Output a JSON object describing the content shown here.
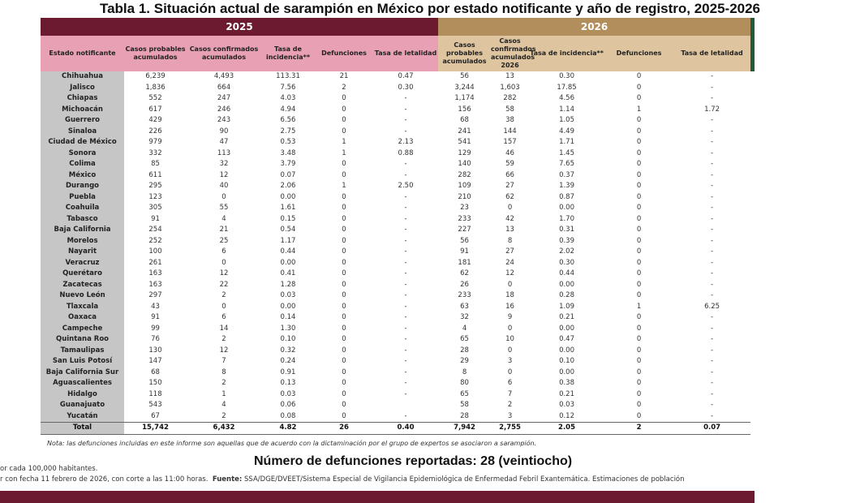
{
  "title": "Tabla 1. Situación actual de sarampión en México por estado notificante y año de registro, 2025-2026",
  "years": [
    "2025",
    "2026"
  ],
  "headers": {
    "state": "Estado notificante",
    "y2025": [
      "Casos probables acumulados",
      "Casos confirmados acumulados",
      "Tasa de incidencia**",
      "Defunciones",
      "Tasa de letalidad"
    ],
    "y2026": [
      "Casos probables acumulados",
      "Casos confirmados acumulados 2026",
      "Tasa de incidencia**",
      "Defunciones",
      "Tasa de letalidad"
    ]
  },
  "rows": [
    [
      "Chihuahua",
      "6,239",
      "4,493",
      "113.31",
      "21",
      "0.47",
      "56",
      "13",
      "0.30",
      "0",
      "-"
    ],
    [
      "Jalisco",
      "1,836",
      "664",
      "7.56",
      "2",
      "0.30",
      "3,244",
      "1,603",
      "17.85",
      "0",
      "-"
    ],
    [
      "Chiapas",
      "552",
      "247",
      "4.03",
      "0",
      "-",
      "1,174",
      "282",
      "4.56",
      "0",
      "-"
    ],
    [
      "Michoacán",
      "617",
      "246",
      "4.94",
      "0",
      "-",
      "156",
      "58",
      "1.14",
      "1",
      "1.72"
    ],
    [
      "Guerrero",
      "429",
      "243",
      "6.56",
      "0",
      "-",
      "68",
      "38",
      "1.05",
      "0",
      "-"
    ],
    [
      "Sinaloa",
      "226",
      "90",
      "2.75",
      "0",
      "-",
      "241",
      "144",
      "4.49",
      "0",
      "-"
    ],
    [
      "Ciudad de México",
      "979",
      "47",
      "0.53",
      "1",
      "2.13",
      "541",
      "157",
      "1.71",
      "0",
      "-"
    ],
    [
      "Sonora",
      "332",
      "113",
      "3.48",
      "1",
      "0.88",
      "129",
      "46",
      "1.45",
      "0",
      "-"
    ],
    [
      "Colima",
      "85",
      "32",
      "3.79",
      "0",
      "-",
      "140",
      "59",
      "7.65",
      "0",
      "-"
    ],
    [
      "México",
      "611",
      "12",
      "0.07",
      "0",
      "-",
      "282",
      "66",
      "0.37",
      "0",
      "-"
    ],
    [
      "Durango",
      "295",
      "40",
      "2.06",
      "1",
      "2.50",
      "109",
      "27",
      "1.39",
      "0",
      "-"
    ],
    [
      "Puebla",
      "123",
      "0",
      "0.00",
      "0",
      "-",
      "210",
      "62",
      "0.87",
      "0",
      "-"
    ],
    [
      "Coahuila",
      "305",
      "55",
      "1.61",
      "0",
      "-",
      "23",
      "0",
      "0.00",
      "0",
      "-"
    ],
    [
      "Tabasco",
      "91",
      "4",
      "0.15",
      "0",
      "-",
      "233",
      "42",
      "1.70",
      "0",
      "-"
    ],
    [
      "Baja California",
      "254",
      "21",
      "0.54",
      "0",
      "-",
      "227",
      "13",
      "0.31",
      "0",
      "-"
    ],
    [
      "Morelos",
      "252",
      "25",
      "1.17",
      "0",
      "-",
      "56",
      "8",
      "0.39",
      "0",
      "-"
    ],
    [
      "Nayarit",
      "100",
      "6",
      "0.44",
      "0",
      "-",
      "91",
      "27",
      "2.02",
      "0",
      "-"
    ],
    [
      "Veracruz",
      "261",
      "0",
      "0.00",
      "0",
      "-",
      "181",
      "24",
      "0.30",
      "0",
      "-"
    ],
    [
      "Querétaro",
      "163",
      "12",
      "0.41",
      "0",
      "-",
      "62",
      "12",
      "0.44",
      "0",
      "-"
    ],
    [
      "Zacatecas",
      "163",
      "22",
      "1.28",
      "0",
      "-",
      "26",
      "0",
      "0.00",
      "0",
      "-"
    ],
    [
      "Nuevo León",
      "297",
      "2",
      "0.03",
      "0",
      "-",
      "233",
      "18",
      "0.28",
      "0",
      "-"
    ],
    [
      "Tlaxcala",
      "43",
      "0",
      "0.00",
      "0",
      "-",
      "63",
      "16",
      "1.09",
      "1",
      "6.25"
    ],
    [
      "Oaxaca",
      "91",
      "6",
      "0.14",
      "0",
      "-",
      "32",
      "9",
      "0.21",
      "0",
      "-"
    ],
    [
      "Campeche",
      "99",
      "14",
      "1.30",
      "0",
      "-",
      "4",
      "0",
      "0.00",
      "0",
      "-"
    ],
    [
      "Quintana Roo",
      "76",
      "2",
      "0.10",
      "0",
      "-",
      "65",
      "10",
      "0.47",
      "0",
      "-"
    ],
    [
      "Tamaulipas",
      "130",
      "12",
      "0.32",
      "0",
      "-",
      "28",
      "0",
      "0.00",
      "0",
      "-"
    ],
    [
      "San Luis Potosí",
      "147",
      "7",
      "0.24",
      "0",
      "-",
      "29",
      "3",
      "0.10",
      "0",
      "-"
    ],
    [
      "Baja California Sur",
      "68",
      "8",
      "0.91",
      "0",
      "-",
      "8",
      "0",
      "0.00",
      "0",
      "-"
    ],
    [
      "Aguascalientes",
      "150",
      "2",
      "0.13",
      "0",
      "-",
      "80",
      "6",
      "0.38",
      "0",
      "-"
    ],
    [
      "Hidalgo",
      "118",
      "1",
      "0.03",
      "0",
      "-",
      "65",
      "7",
      "0.21",
      "0",
      "-"
    ],
    [
      "Guanajuato",
      "543",
      "4",
      "0.06",
      "0",
      "",
      "58",
      "2",
      "0.03",
      "0",
      "-"
    ],
    [
      "Yucatán",
      "67",
      "2",
      "0.08",
      "0",
      "-",
      "28",
      "3",
      "0.12",
      "0",
      "-"
    ]
  ],
  "total": [
    "Total",
    "15,742",
    "6,432",
    "4.82",
    "26",
    "0.40",
    "7,942",
    "2,755",
    "2.05",
    "2",
    "0.07"
  ],
  "note": "Nota: las defunciones incluidas en este informe son aquellas que de acuerdo con la dictaminación por el grupo de expertos se asociaron a sarampión.",
  "deaths_reported": "Número de defunciones reportadas: 28 (veintiocho)",
  "footnote_rate": "or cada 100,000 habitantes.",
  "footnote_source_prefix": "r con fecha 11 febrero de 2026, con corte a las 11:00 horas.",
  "footnote_source_label": "Fuente:",
  "footnote_source": "SSA/DGE/DVEET/Sistema Especial de Vigilancia Epidemiológica de Enfermedad Febril Exantemática. Estimaciones de población"
}
